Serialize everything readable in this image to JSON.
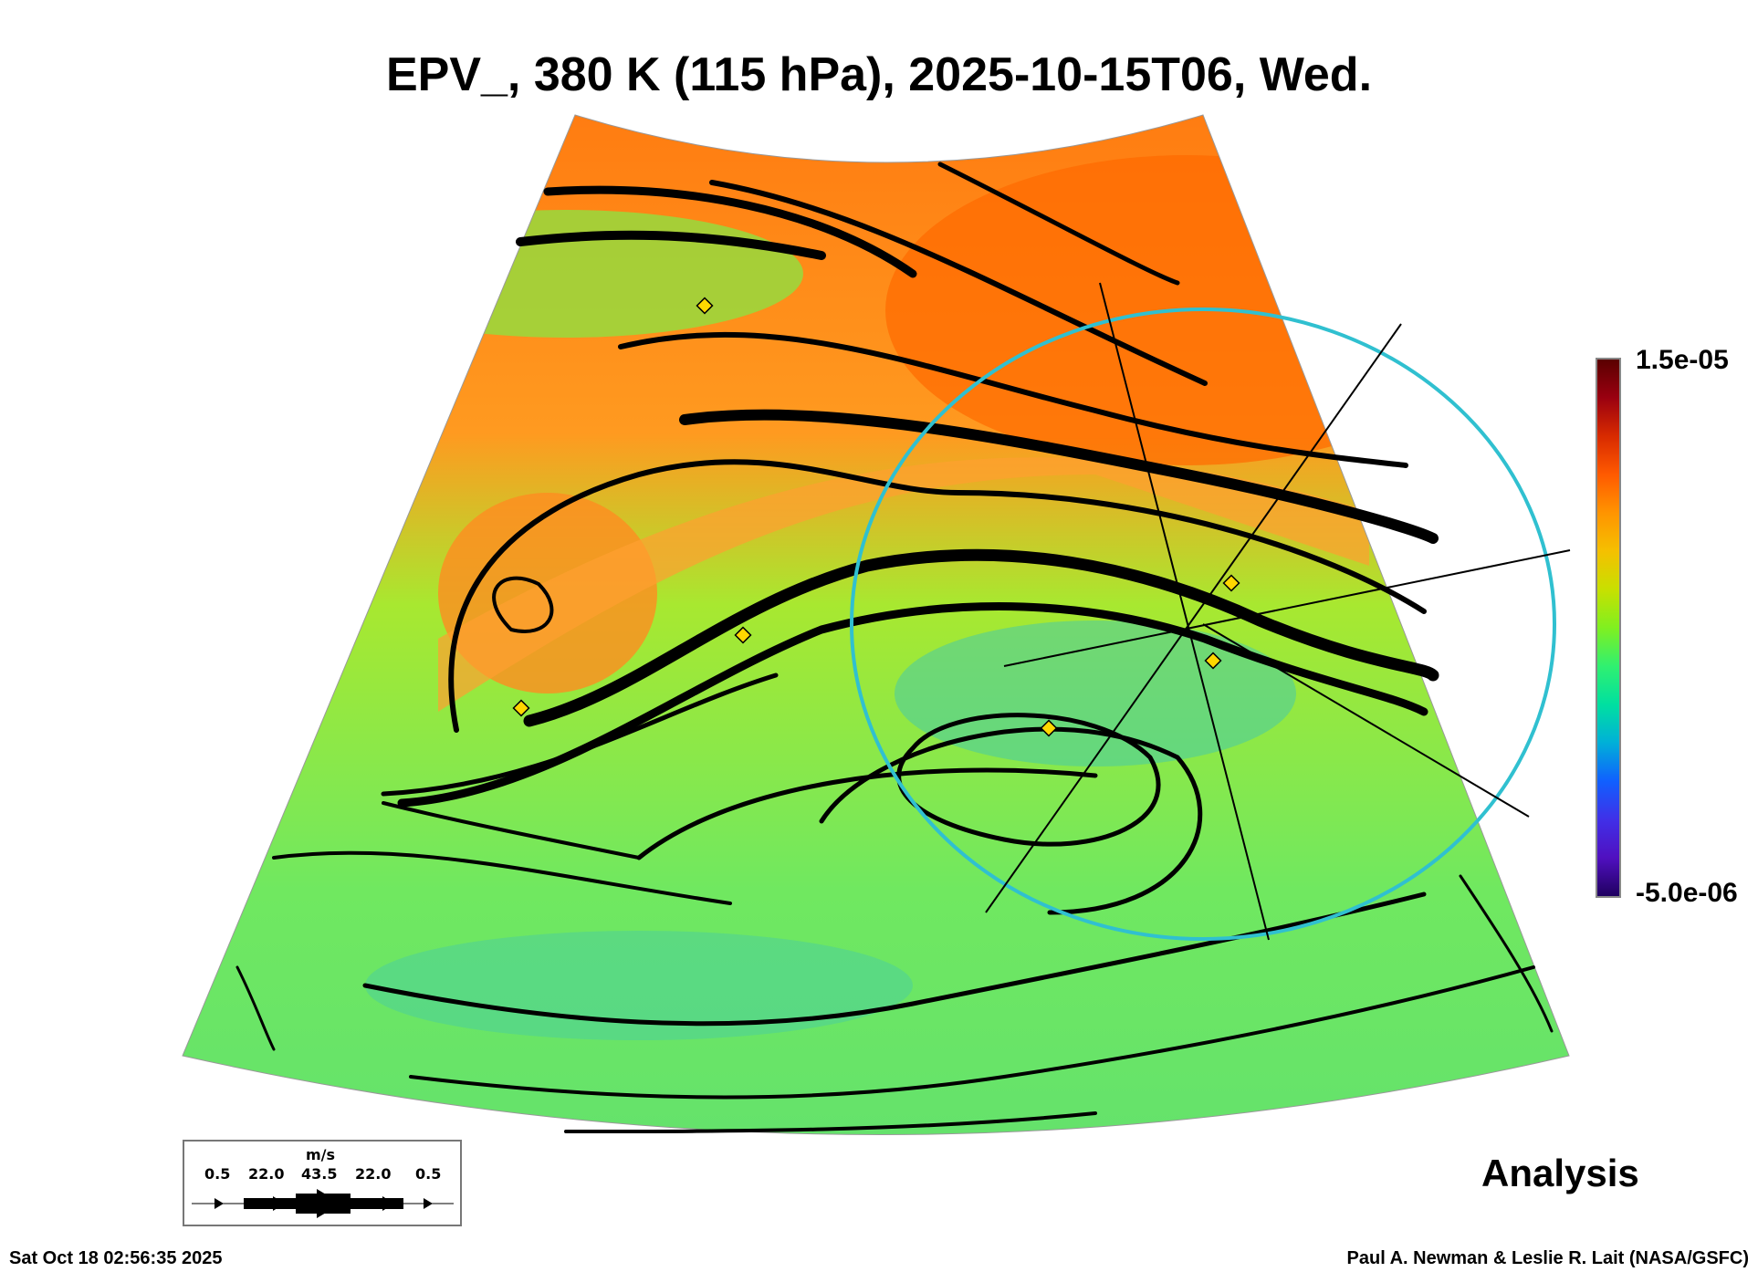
{
  "chart_data": {
    "type": "heatmap",
    "title": "EPV_, 380 K (115 hPa), 2025-10-15T06, Wed.",
    "variable": "EPV_",
    "level": "380 K (115 hPa)",
    "valid_time": "2025-10-15T06, Wed.",
    "colorbar": {
      "max_label": "1.5e-05",
      "min_label": "-5.0e-06",
      "range": [
        -5e-06,
        1.5e-05
      ]
    },
    "wind_legend": {
      "units": "m/s",
      "ticks": [
        "0.5",
        "22.0",
        "43.5",
        "22.0",
        "0.5"
      ]
    },
    "product_label": "Analysis",
    "overlay": "streamlines of wind, projection circle with radial lines"
  },
  "footer": {
    "timestamp": "Sat Oct 18 02:56:35 2025",
    "credit": "Paul A. Newman & Leslie R. Lait (NASA/GSFC)"
  },
  "colors": {
    "circle": "#30c0d0",
    "marker": "#ffd700"
  }
}
